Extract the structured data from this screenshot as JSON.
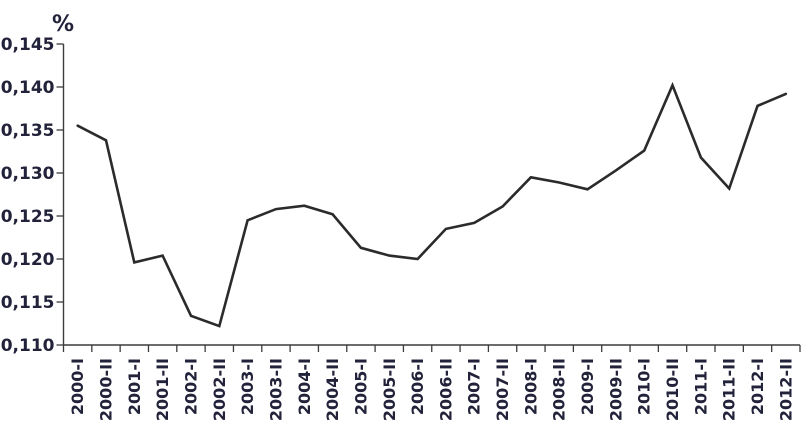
{
  "figure": {
    "unit_label": "%"
  },
  "chart_data": {
    "type": "line",
    "title": "",
    "xlabel": "",
    "ylabel": "%",
    "legend": "none",
    "grid": false,
    "decimal_separator": ",",
    "categories": [
      "2000-I",
      "2000-II",
      "2001-I",
      "2001-II",
      "2002-I",
      "2002-II",
      "2003-I",
      "2003-II",
      "2004-I",
      "2004-II",
      "2005-I",
      "2005-II",
      "2006-I",
      "2006-II",
      "2007-I",
      "2007-II",
      "2008-I",
      "2008-II",
      "2009-I",
      "2009-II",
      "2010-I",
      "2010-II",
      "2011-I",
      "2011-II",
      "2012-I",
      "2012-II"
    ],
    "values": [
      0.1355,
      0.1338,
      0.1196,
      0.1204,
      0.1134,
      0.1122,
      0.1245,
      0.1258,
      0.1262,
      0.1252,
      0.1213,
      0.1204,
      0.12,
      0.1235,
      0.1242,
      0.1261,
      0.1295,
      0.1289,
      0.1281,
      0.1303,
      0.1326,
      0.1402,
      0.1318,
      0.1282,
      0.1378,
      0.1392
    ],
    "ylim": [
      0.11,
      0.145
    ],
    "y_ticks": [
      0.11,
      0.115,
      0.12,
      0.125,
      0.13,
      0.135,
      0.14,
      0.145
    ],
    "y_tick_labels": [
      "0,110",
      "0,115",
      "0,120",
      "0,125",
      "0,130",
      "0,135",
      "0,140",
      "0,145"
    ],
    "line_color": "#2b2b2b",
    "axis_color": "#3c3c3c",
    "text_color": "#22223a",
    "background": "#ffffff"
  }
}
